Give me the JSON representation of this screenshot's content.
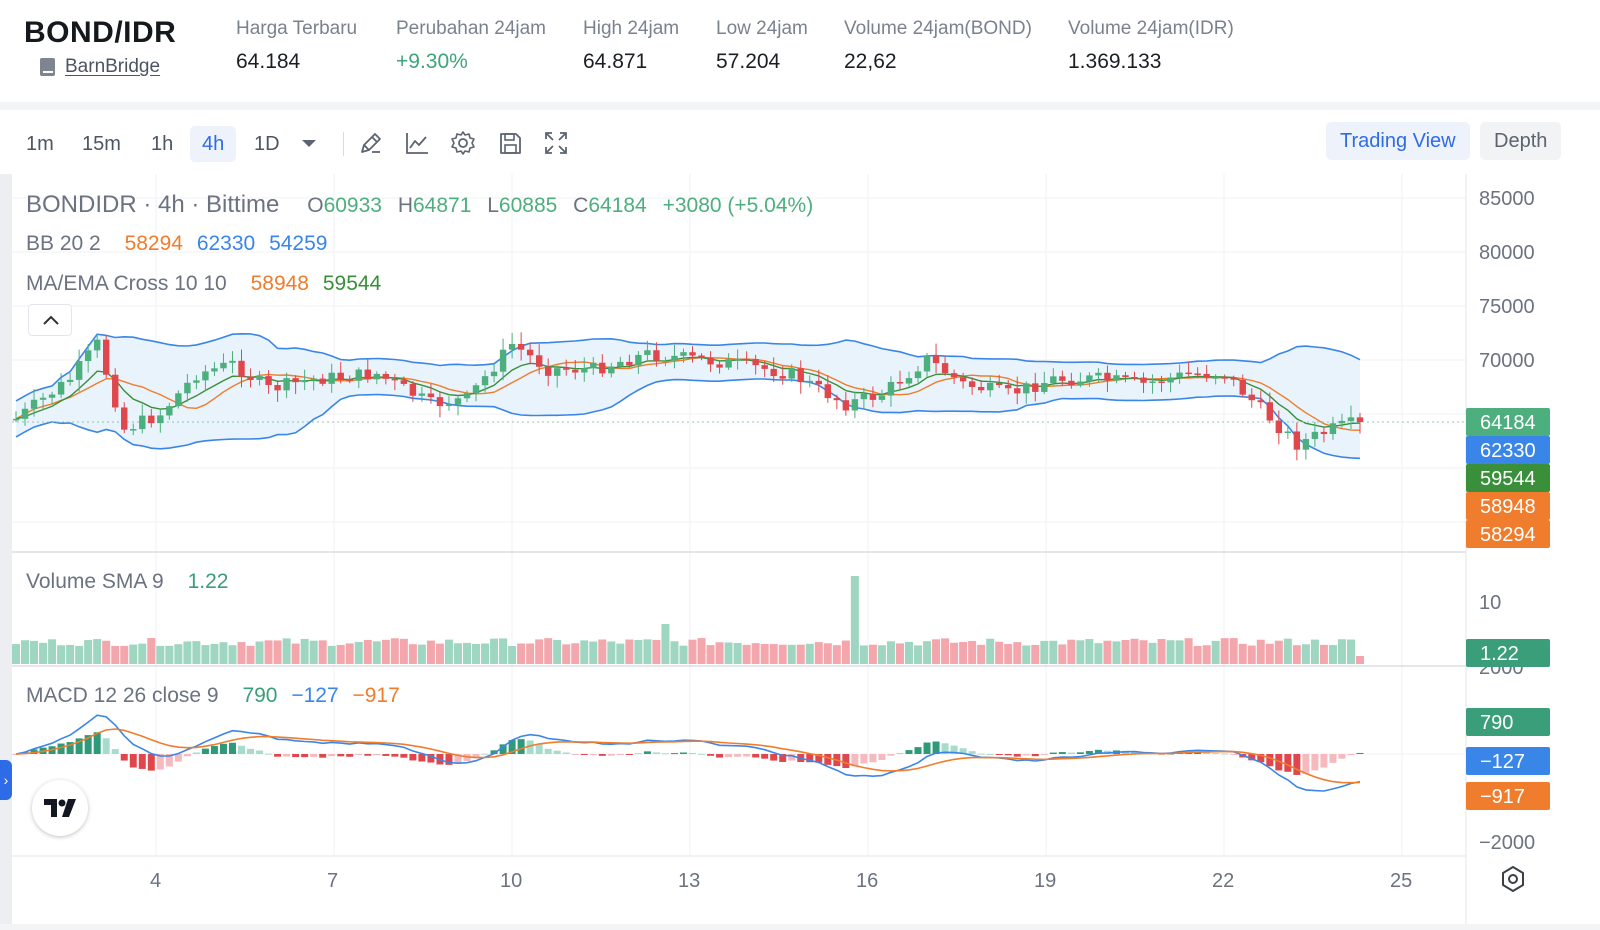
{
  "ticker": {
    "pair": "BOND/IDR",
    "coin_link": "BarnBridge",
    "stats": [
      {
        "label": "Harga Terbaru",
        "value": "64.184",
        "up": false
      },
      {
        "label": "Perubahan 24jam",
        "value": "+9.30%",
        "up": true
      },
      {
        "label": "High 24jam",
        "value": "64.871",
        "up": false
      },
      {
        "label": "Low 24jam",
        "value": "57.204",
        "up": false
      },
      {
        "label": "Volume 24jam(BOND)",
        "value": "22,62",
        "up": false
      },
      {
        "label": "Volume 24jam(IDR)",
        "value": "1.369.133",
        "up": false
      }
    ]
  },
  "toolbar": {
    "timeframes": [
      "1m",
      "15m",
      "1h",
      "4h",
      "1D"
    ],
    "active_timeframe": "4h",
    "trading_view_label": "Trading View",
    "depth_label": "Depth"
  },
  "legend": {
    "symbol": "BONDIDR · 4h · Bittime",
    "o_label": "O",
    "o": "60933",
    "h_label": "H",
    "h": "64871",
    "l_label": "L",
    "l": "60885",
    "c_label": "C",
    "c": "64184",
    "change": "+3080 (+5.04%)",
    "bb_label": "BB 20 2",
    "bb_basis": "58294",
    "bb_upper": "62330",
    "bb_lower": "54259",
    "ma_label": "MA/EMA Cross 10 10",
    "ma": "58948",
    "ema": "59544",
    "vol_label": "Volume SMA 9",
    "vol_value": "1.22",
    "macd_label": "MACD 12 26 close 9",
    "macd_hist": "790",
    "macd_line": "−127",
    "macd_signal": "−917"
  },
  "axes": {
    "price_ticks": [
      "85000",
      "80000",
      "75000",
      "70000"
    ],
    "volume_tick": "10",
    "macd_ticks": [
      "2000",
      "−2000"
    ],
    "x_ticks": [
      "4",
      "7",
      "10",
      "13",
      "16",
      "19",
      "22",
      "25"
    ]
  },
  "price_tags": [
    {
      "value": "64184",
      "color": "#4caf7d"
    },
    {
      "value": "62330",
      "color": "#3a86e8"
    },
    {
      "value": "59544",
      "color": "#3a8f3a"
    },
    {
      "value": "58948",
      "color": "#ef7d2d"
    },
    {
      "value": "58294",
      "color": "#ef7d2d"
    }
  ],
  "volume_tag": {
    "value": "1.22",
    "color": "#3a9e7a"
  },
  "macd_tags": [
    {
      "value": "790",
      "color": "#3a9e7a"
    },
    {
      "value": "−127",
      "color": "#3a86e8"
    },
    {
      "value": "−917",
      "color": "#ef7d2d"
    }
  ],
  "colors": {
    "up": "#4caf7d",
    "down": "#e0474c",
    "bb_fill": "#e8f3fc",
    "bb_line": "#3a86e8",
    "ma": "#ef7d2d",
    "ema": "#3a8f3a"
  },
  "icons": [
    "pen-icon",
    "indicator-icon",
    "gear-icon",
    "save-icon",
    "fullscreen-icon"
  ]
}
